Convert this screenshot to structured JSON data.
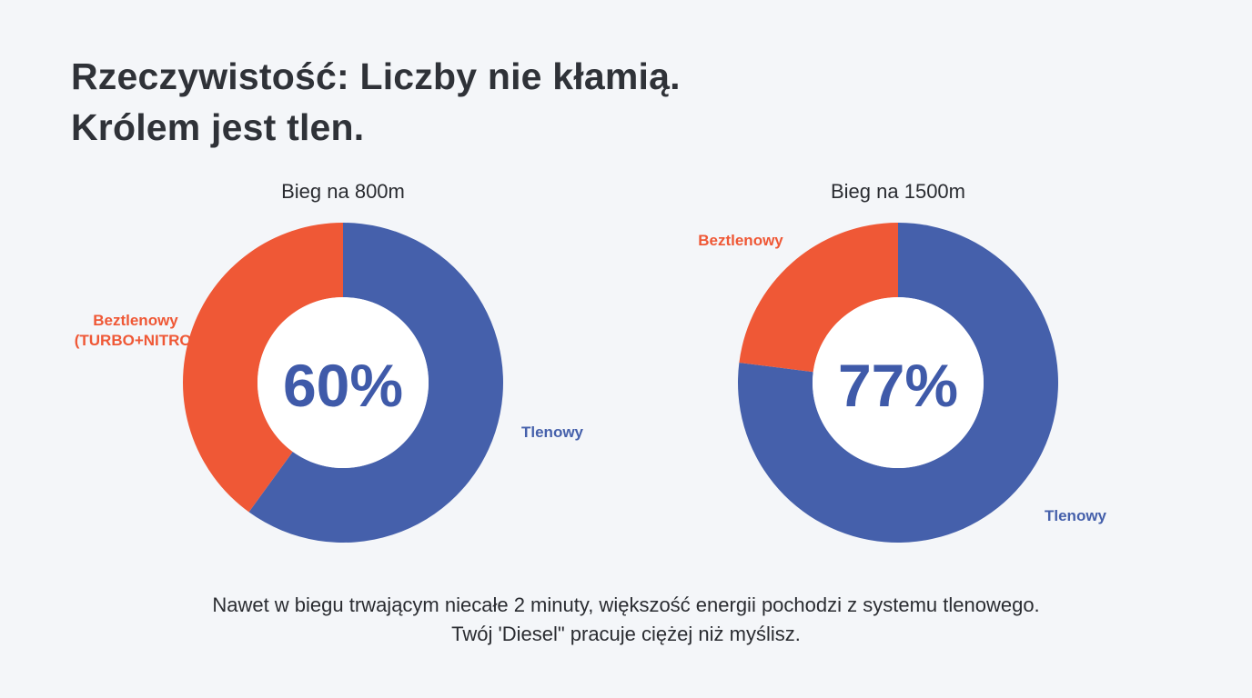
{
  "slide": {
    "title_lines": [
      "Rzeczywistość: Liczby nie kłamią.",
      "Królem jest tlen."
    ],
    "caption_lines": [
      "Nawet w biegu trwającym niecałe 2 minuty, większość energii pochodzi z systemu tlenowego.",
      "Twój 'Diesel\" pracuje ciężej niż myślisz."
    ]
  },
  "colors": {
    "aerobic": "#4560ab",
    "anaerobic": "#ef5836",
    "center_text": "#3f5aa9"
  },
  "chart_data": [
    {
      "type": "pie",
      "title": "Bieg na 800m",
      "center_label": "60%",
      "slices": [
        {
          "label": "Tlenowy",
          "value": 60,
          "color": "#4560ab"
        },
        {
          "label_lines": [
            "Beztlenowy",
            "(TURBO+NITRO)"
          ],
          "value": 40,
          "color": "#ef5836"
        }
      ]
    },
    {
      "type": "pie",
      "title": "Bieg na 1500m",
      "center_label": "77%",
      "slices": [
        {
          "label": "Tlenowy",
          "value": 77,
          "color": "#4560ab"
        },
        {
          "label_lines": [
            "Beztlenowy"
          ],
          "value": 23,
          "color": "#ef5836"
        }
      ]
    }
  ]
}
